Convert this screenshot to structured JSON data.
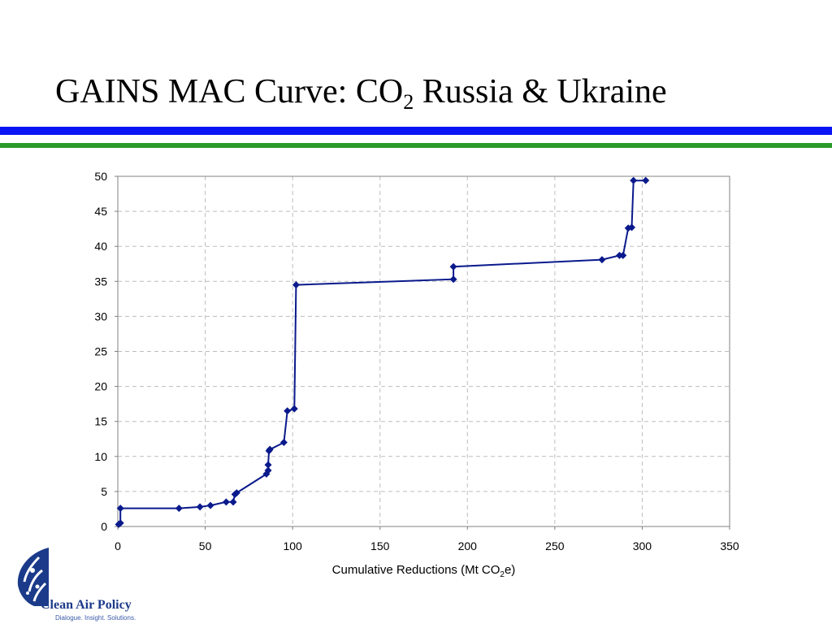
{
  "slide": {
    "title_prefix": "GAINS MAC Curve: CO",
    "title_sub": "2",
    "title_suffix": " Russia & Ukraine"
  },
  "colors": {
    "rule_blue": "#0a14f5",
    "rule_green": "#2a9a2a",
    "series": "#0a1a8c"
  },
  "chart_data": {
    "type": "line",
    "xlabel_prefix": "Cumulative Reductions (Mt CO",
    "xlabel_sub": "2",
    "xlabel_suffix": "e)",
    "ylabel": "",
    "xlim": [
      0,
      350
    ],
    "ylim": [
      0,
      50
    ],
    "x_ticks": [
      0,
      50,
      100,
      150,
      200,
      250,
      300,
      350
    ],
    "y_ticks": [
      0,
      5,
      10,
      15,
      20,
      25,
      30,
      35,
      40,
      45,
      50
    ],
    "grid": true,
    "legend": "none",
    "marker": "diamond",
    "series": [
      {
        "x": [
          0.5,
          1.5,
          1.5,
          35,
          47,
          53,
          62,
          66,
          67,
          68,
          85,
          86,
          86,
          86.5,
          87,
          95,
          97,
          101,
          102,
          192,
          192,
          277,
          287,
          289,
          292,
          294,
          295,
          302
        ],
        "y": [
          0.3,
          0.5,
          2.6,
          2.6,
          2.8,
          3.0,
          3.5,
          3.5,
          4.6,
          4.8,
          7.5,
          8.0,
          8.8,
          10.8,
          11.0,
          12.0,
          16.5,
          16.8,
          34.5,
          35.3,
          37.1,
          38.1,
          38.7,
          38.7,
          42.6,
          42.7,
          49.4,
          49.4
        ]
      }
    ]
  },
  "logo": {
    "name": "Clean Air Policy",
    "tagline": "Dialogue. Insight. Solutions."
  }
}
